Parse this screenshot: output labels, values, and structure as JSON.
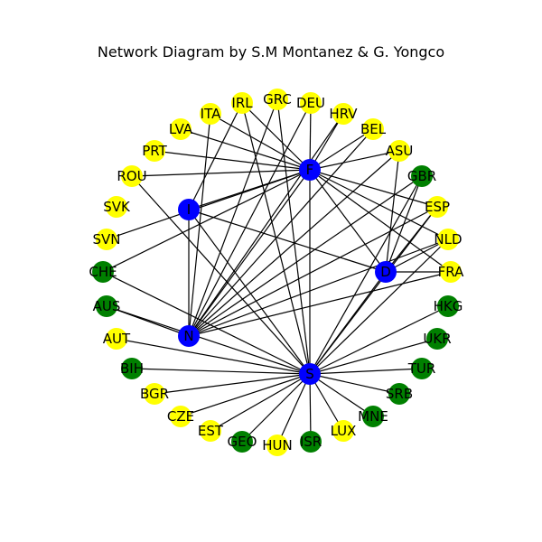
{
  "title": "Network Diagram by S.M Montanez & G. Yongco",
  "colors": {
    "hub": "#0000ff",
    "yellow": "#ffff00",
    "green": "#008000",
    "edge": "#000000"
  },
  "nodes": [
    {
      "id": "F",
      "group": "hub"
    },
    {
      "id": "I",
      "group": "hub"
    },
    {
      "id": "D",
      "group": "hub"
    },
    {
      "id": "N",
      "group": "hub"
    },
    {
      "id": "S",
      "group": "hub"
    },
    {
      "id": "ITA",
      "group": "yellow"
    },
    {
      "id": "IRL",
      "group": "yellow"
    },
    {
      "id": "GRC",
      "group": "yellow"
    },
    {
      "id": "DEU",
      "group": "yellow"
    },
    {
      "id": "HRV",
      "group": "yellow"
    },
    {
      "id": "BEL",
      "group": "yellow"
    },
    {
      "id": "ASU",
      "group": "yellow"
    },
    {
      "id": "LVA",
      "group": "yellow"
    },
    {
      "id": "PRT",
      "group": "yellow"
    },
    {
      "id": "ROU",
      "group": "yellow"
    },
    {
      "id": "SVK",
      "group": "yellow"
    },
    {
      "id": "SVN",
      "group": "yellow"
    },
    {
      "id": "ESP",
      "group": "yellow"
    },
    {
      "id": "NLD",
      "group": "yellow"
    },
    {
      "id": "FRA",
      "group": "yellow"
    },
    {
      "id": "AUT",
      "group": "yellow"
    },
    {
      "id": "BGR",
      "group": "yellow"
    },
    {
      "id": "CZE",
      "group": "yellow"
    },
    {
      "id": "EST",
      "group": "yellow"
    },
    {
      "id": "HUN",
      "group": "yellow"
    },
    {
      "id": "LUX",
      "group": "yellow"
    },
    {
      "id": "GBR",
      "group": "green"
    },
    {
      "id": "CHE",
      "group": "green"
    },
    {
      "id": "AUS",
      "group": "green"
    },
    {
      "id": "HKG",
      "group": "green"
    },
    {
      "id": "UKR",
      "group": "green"
    },
    {
      "id": "BIH",
      "group": "green"
    },
    {
      "id": "TUR",
      "group": "green"
    },
    {
      "id": "SRB",
      "group": "green"
    },
    {
      "id": "MNE",
      "group": "green"
    },
    {
      "id": "GEO",
      "group": "green"
    },
    {
      "id": "ISR",
      "group": "green"
    }
  ],
  "edges": [
    [
      "F",
      "ITA"
    ],
    [
      "F",
      "IRL"
    ],
    [
      "F",
      "DEU"
    ],
    [
      "F",
      "HRV"
    ],
    [
      "F",
      "BEL"
    ],
    [
      "F",
      "ASU"
    ],
    [
      "F",
      "LVA"
    ],
    [
      "F",
      "PRT"
    ],
    [
      "F",
      "ROU"
    ],
    [
      "F",
      "I"
    ],
    [
      "F",
      "N"
    ],
    [
      "F",
      "S"
    ],
    [
      "F",
      "D"
    ],
    [
      "F",
      "ESP"
    ],
    [
      "F",
      "NLD"
    ],
    [
      "F",
      "FRA"
    ],
    [
      "F",
      "CHE"
    ],
    [
      "F",
      "SVN"
    ],
    [
      "I",
      "D"
    ],
    [
      "I",
      "S"
    ],
    [
      "I",
      "N"
    ],
    [
      "I",
      "IRL"
    ],
    [
      "N",
      "ITA"
    ],
    [
      "N",
      "DEU"
    ],
    [
      "N",
      "HRV"
    ],
    [
      "N",
      "BEL"
    ],
    [
      "N",
      "ASU"
    ],
    [
      "N",
      "GBR"
    ],
    [
      "N",
      "ESP"
    ],
    [
      "N",
      "NLD"
    ],
    [
      "N",
      "FRA"
    ],
    [
      "N",
      "AUS"
    ],
    [
      "N",
      "GRC"
    ],
    [
      "D",
      "ASU"
    ],
    [
      "D",
      "GBR"
    ],
    [
      "D",
      "ESP"
    ],
    [
      "D",
      "NLD"
    ],
    [
      "D",
      "FRA"
    ],
    [
      "S",
      "IRL"
    ],
    [
      "S",
      "GRC"
    ],
    [
      "S",
      "ROU"
    ],
    [
      "S",
      "GBR"
    ],
    [
      "S",
      "ESP"
    ],
    [
      "S",
      "NLD"
    ],
    [
      "S",
      "D"
    ],
    [
      "S",
      "CHE"
    ],
    [
      "S",
      "AUS"
    ],
    [
      "S",
      "AUT"
    ],
    [
      "S",
      "BIH"
    ],
    [
      "S",
      "BGR"
    ],
    [
      "S",
      "CZE"
    ],
    [
      "S",
      "EST"
    ],
    [
      "S",
      "GEO"
    ],
    [
      "S",
      "HUN"
    ],
    [
      "S",
      "ISR"
    ],
    [
      "S",
      "LUX"
    ],
    [
      "S",
      "MNE"
    ],
    [
      "S",
      "SRB"
    ],
    [
      "S",
      "TUR"
    ],
    [
      "S",
      "UKR"
    ],
    [
      "S",
      "HKG"
    ]
  ]
}
